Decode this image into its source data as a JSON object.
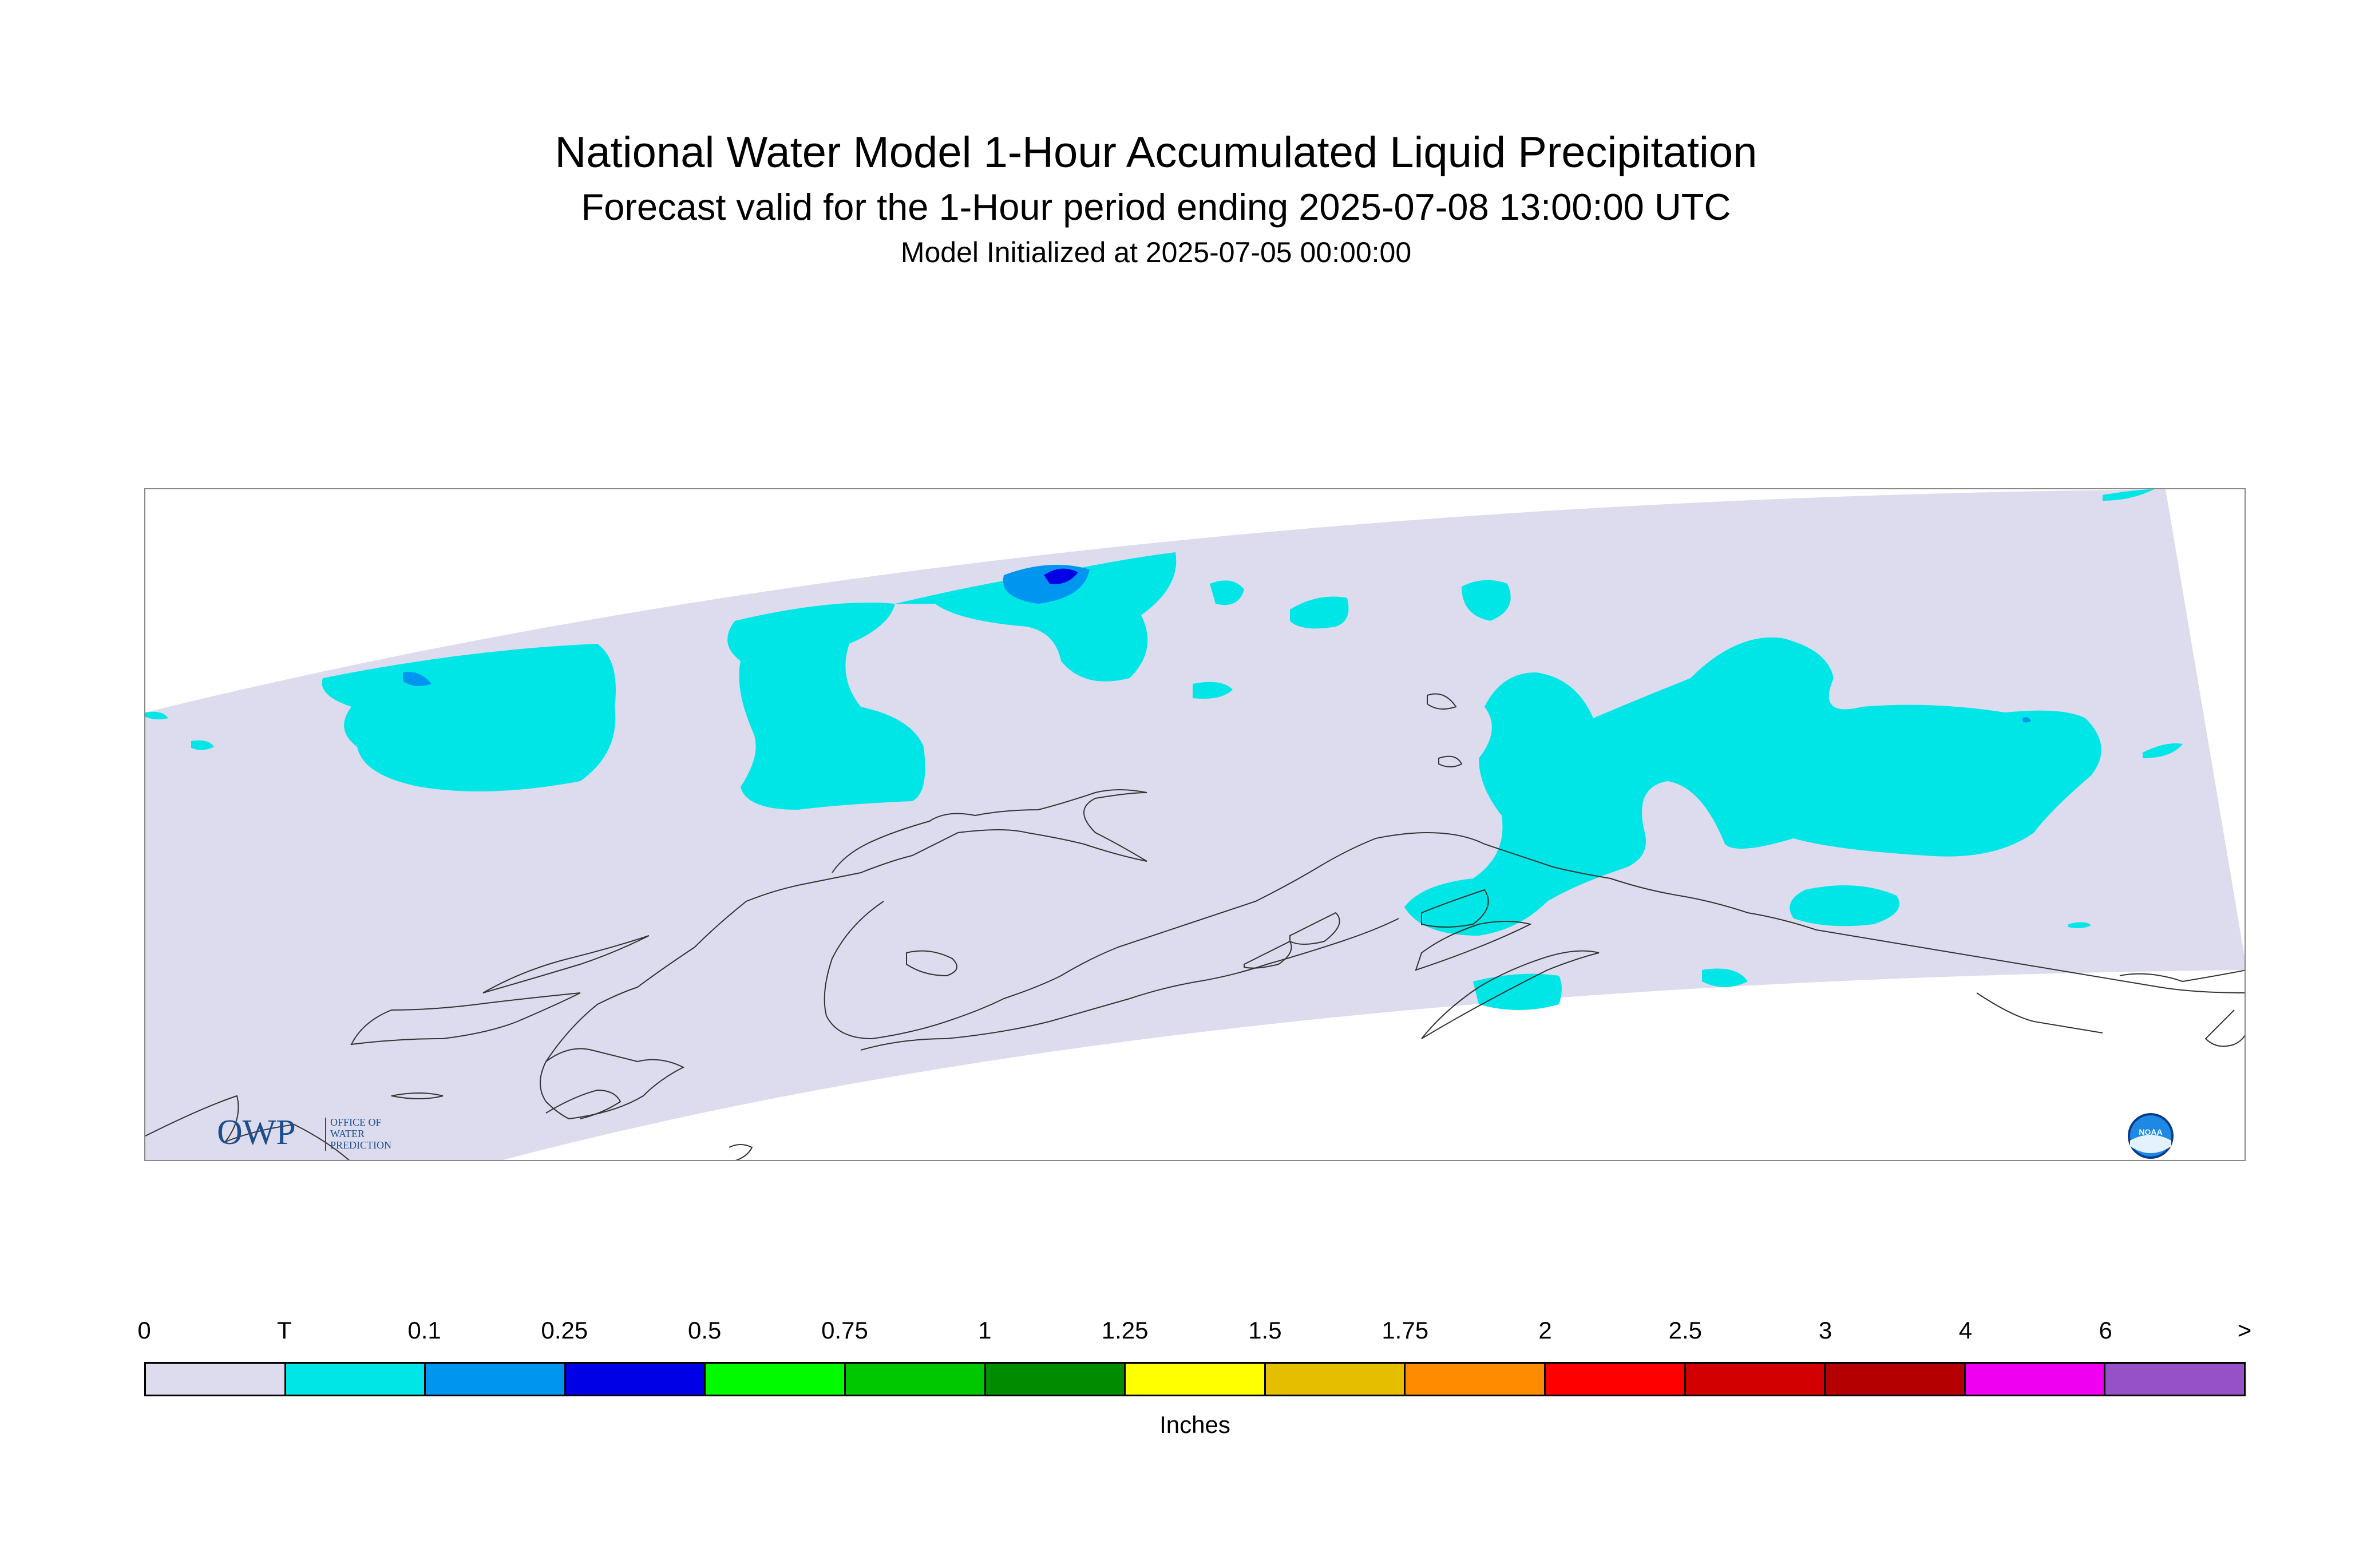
{
  "title": "National Water Model 1-Hour Accumulated Liquid Precipitation",
  "subtitle": "Forecast valid for the 1-Hour period ending 2025-07-08 13:00:00 UTC",
  "init_line": "Model Initialized at 2025-07-05 00:00:00",
  "logo_owp": {
    "mark": "OWP",
    "text_lines": [
      "OFFICE OF",
      "WATER",
      "PREDICTION"
    ]
  },
  "logo_noaa": {
    "mark": "NOAA",
    "icon": "noaa-logo-icon"
  },
  "legend": {
    "units": "Inches",
    "tick_labels": [
      "0",
      "T",
      "0.1",
      "0.25",
      "0.5",
      "0.75",
      "1",
      "1.25",
      "1.5",
      "1.75",
      "2",
      "2.5",
      "3",
      "4",
      "6",
      ">"
    ],
    "colors": [
      "#dcdcee",
      "#00e6e6",
      "#0096f0",
      "#0000e6",
      "#00fa00",
      "#00c800",
      "#008c00",
      "#ffff00",
      "#e6be00",
      "#ff8c00",
      "#ff0000",
      "#d20000",
      "#b40000",
      "#f000f0",
      "#9650c8"
    ]
  },
  "colors": {
    "domain_fill": "#dcdcee",
    "precip_trace": "#00e6e6",
    "precip_01": "#0096f0",
    "precip_025": "#0000e6",
    "coastline": "#333333",
    "frame_border": "#888888"
  }
}
